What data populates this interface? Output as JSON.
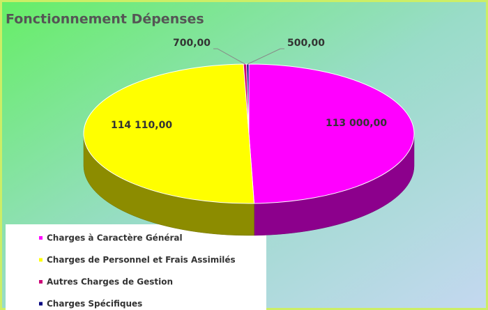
{
  "chart_data": {
    "type": "pie3d",
    "title": "Fonctionnement Dépenses",
    "categories": [
      "Charges à Caractère Général",
      "Charges de Personnel et Frais Assimilés",
      "Autres Charges de Gestion",
      "Charges Spécifiques"
    ],
    "values": [
      113000,
      114110,
      700,
      500
    ],
    "value_labels": [
      "113 000,00",
      "114 110,00",
      "700,00",
      "500,00"
    ],
    "colors": [
      "#ff00ff",
      "#ffff00",
      "#cc0077",
      "#000080"
    ],
    "legend": "bottom-left"
  }
}
